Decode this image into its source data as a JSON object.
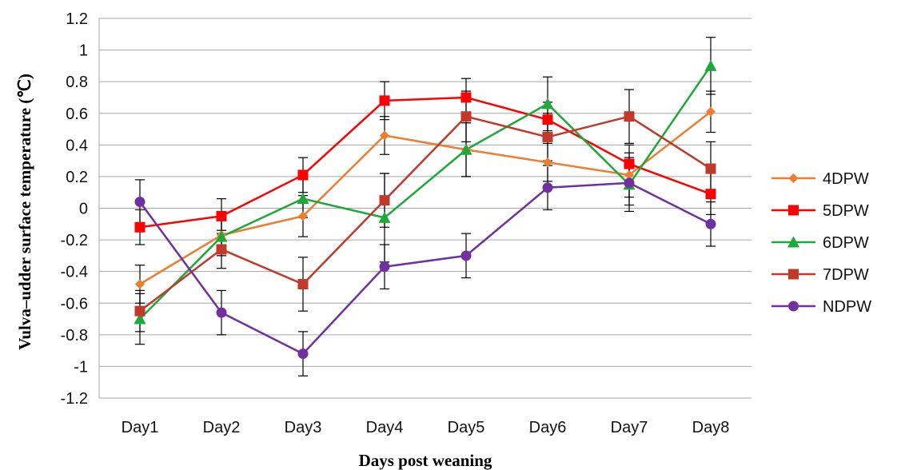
{
  "chart_data": {
    "type": "line",
    "title": "",
    "xlabel": "Days post weaning",
    "ylabel": "Vulva–udder surface temperature (℃)",
    "categories": [
      "Day1",
      "Day2",
      "Day3",
      "Day4",
      "Day5",
      "Day6",
      "Day7",
      "Day8"
    ],
    "ylim": [
      -1.2,
      1.2
    ],
    "yticks": [
      -1.2,
      -1,
      -0.8,
      -0.6,
      -0.4,
      -0.2,
      0,
      0.2,
      0.4,
      0.6,
      0.8,
      1,
      1.2
    ],
    "ytick_labels": [
      "-1.2",
      "-1",
      "-0.8",
      "-0.6",
      "-0.4",
      "-0.2",
      "0",
      "0.2",
      "0.4",
      "0.6",
      "0.8",
      "1",
      "1.2"
    ],
    "grid": true,
    "legend": "right",
    "series": [
      {
        "name": "4DPW",
        "color": "#ED7D31",
        "marker": "diamond",
        "values": [
          -0.48,
          -0.17,
          -0.05,
          0.46,
          0.37,
          0.29,
          0.21,
          0.61
        ],
        "errors": [
          0.12,
          0.11,
          0.13,
          0.12,
          0.17,
          0.12,
          0.14,
          0.13
        ]
      },
      {
        "name": "5DPW",
        "color": "#FF0000",
        "marker": "square",
        "values": [
          -0.12,
          -0.05,
          0.21,
          0.68,
          0.7,
          0.56,
          0.28,
          0.09
        ],
        "errors": [
          0.11,
          0.11,
          0.11,
          0.12,
          0.12,
          0.11,
          0.12,
          0.13
        ]
      },
      {
        "name": "6DPW",
        "color": "#1FA83A",
        "marker": "triangle",
        "values": [
          -0.7,
          -0.18,
          0.06,
          -0.06,
          0.37,
          0.66,
          0.15,
          0.9
        ],
        "errors": [
          0.16,
          0.12,
          0.12,
          0.28,
          0.17,
          0.17,
          0.17,
          0.18
        ]
      },
      {
        "name": "7DPW",
        "color": "#C0392B",
        "marker": "square",
        "values": [
          -0.65,
          -0.26,
          -0.48,
          0.05,
          0.58,
          0.45,
          0.58,
          0.25
        ],
        "errors": [
          0.13,
          0.12,
          0.17,
          0.17,
          0.16,
          0.15,
          0.17,
          0.17
        ]
      },
      {
        "name": "NDPW",
        "color": "#7030A0",
        "marker": "circle",
        "values": [
          0.04,
          -0.66,
          -0.92,
          -0.37,
          -0.3,
          0.13,
          0.16,
          -0.1
        ],
        "errors": [
          0.14,
          0.14,
          0.14,
          0.14,
          0.14,
          0.14,
          0.14,
          0.14
        ]
      }
    ]
  }
}
